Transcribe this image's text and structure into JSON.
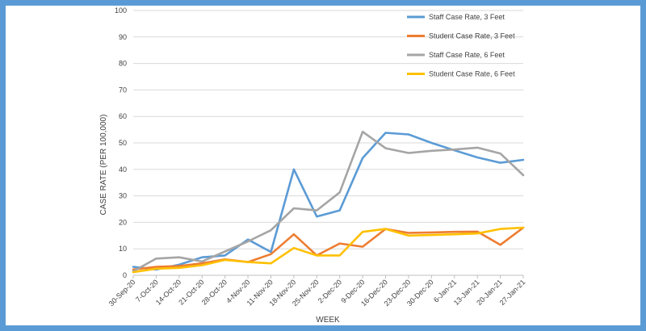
{
  "chart_data": {
    "type": "line",
    "title": "",
    "xlabel": "WEEK",
    "ylabel": "CASE RATE (PER 100,000)",
    "ylim": [
      0,
      100
    ],
    "yticks": [
      0,
      10,
      20,
      30,
      40,
      50,
      60,
      70,
      80,
      90,
      100
    ],
    "grid": true,
    "legend_position": "top-right",
    "categories": [
      "30-Sep-20",
      "7-Oct-20",
      "14-Oct-20",
      "21-Oct-20",
      "28-Oct-20",
      "4-Nov-20",
      "11-Nov-20",
      "18-Nov-20",
      "25-Nov-20",
      "2-Dec-20",
      "9-Dec-20",
      "16-Dec-20",
      "23-Dec-20",
      "30-Dec-20",
      "6-Jan-21",
      "13-Jan-21",
      "20-Jan-21",
      "27-Jan-21"
    ],
    "series": [
      {
        "name": "Staff Case Rate, 3 Feet",
        "color": "#5b9bd5",
        "values": [
          3.2,
          2.2,
          4.0,
          6.8,
          7.5,
          13.5,
          8.8,
          40.0,
          22.2,
          24.5,
          44.3,
          53.8,
          53.2,
          50.0,
          47.2,
          44.5,
          42.5,
          43.6
        ]
      },
      {
        "name": "Student Case Rate, 3 Feet",
        "color": "#ed7d31",
        "values": [
          2.2,
          3.2,
          3.5,
          4.5,
          6.0,
          5.0,
          8.0,
          15.5,
          7.5,
          12.0,
          10.8,
          17.5,
          16.0,
          16.2,
          16.4,
          16.5,
          11.5,
          18.0
        ]
      },
      {
        "name": "Staff Case Rate, 6 Feet",
        "color": "#a5a5a5",
        "values": [
          1.5,
          6.3,
          6.8,
          5.2,
          9.0,
          12.8,
          17.0,
          25.3,
          24.5,
          31.3,
          54.2,
          48.0,
          46.2,
          47.0,
          47.5,
          48.2,
          46.0,
          37.8
        ]
      },
      {
        "name": "Student Case Rate, 6 Feet",
        "color": "#ffc000",
        "values": [
          1.2,
          2.5,
          2.8,
          3.8,
          5.8,
          5.0,
          4.5,
          10.3,
          7.5,
          7.5,
          16.4,
          17.5,
          15.0,
          15.2,
          15.5,
          15.8,
          17.5,
          18.0
        ]
      }
    ]
  }
}
